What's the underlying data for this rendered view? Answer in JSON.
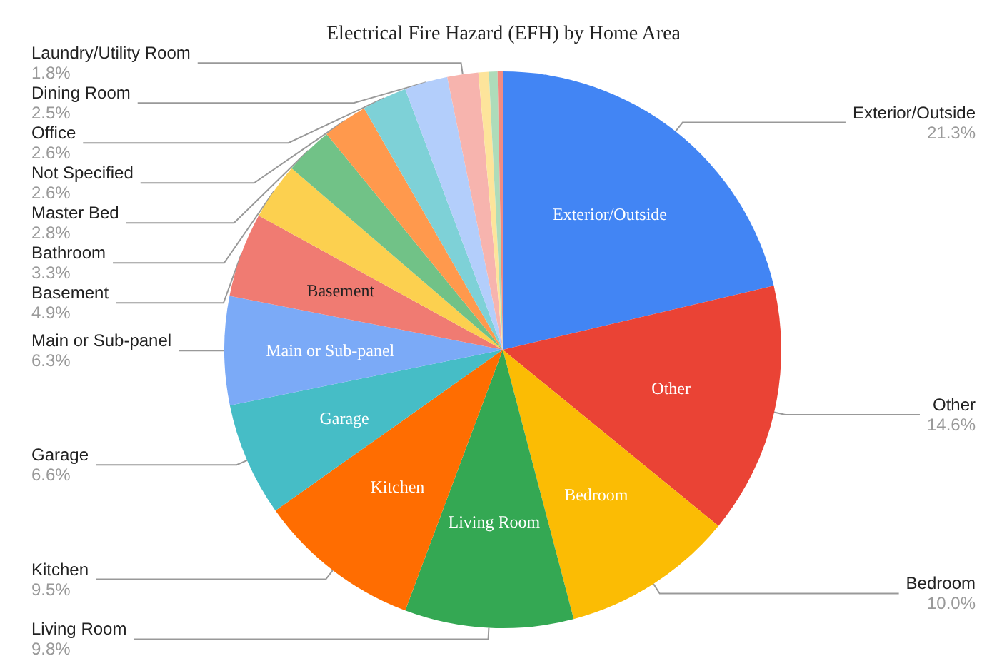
{
  "chart_data": {
    "type": "pie",
    "title": "Electrical Fire Hazard (EFH) by Home Area",
    "categories": [
      "Exterior/Outside",
      "Other",
      "Bedroom",
      "Living Room",
      "Kitchen",
      "Garage",
      "Main or Sub-panel",
      "Basement",
      "Bathroom",
      "Master Bed",
      "Not Specified",
      "Office",
      "Dining Room",
      "Laundry/Utility Room",
      null,
      null,
      null
    ],
    "values": [
      21.3,
      14.6,
      10.0,
      9.8,
      9.5,
      6.6,
      6.3,
      4.9,
      3.3,
      2.8,
      2.6,
      2.6,
      2.5,
      1.8,
      0.6,
      0.5,
      0.3
    ],
    "value_labels": [
      "21.3%",
      "14.6%",
      "10.0%",
      "9.8%",
      "9.5%",
      "6.6%",
      "6.3%",
      "4.9%",
      "3.3%",
      "2.8%",
      "2.6%",
      "2.6%",
      "2.5%",
      "1.8%",
      null,
      null,
      null
    ],
    "colors": [
      "#4285f4",
      "#ea4335",
      "#fbbc04",
      "#34a853",
      "#ff6d01",
      "#46bdc6",
      "#7baaf7",
      "#f07b72",
      "#fcd04f",
      "#71c287",
      "#ff994d",
      "#7ed1d7",
      "#b3cefb",
      "#f7b4ae",
      "#fde49b",
      "#aedcba",
      "#f28b82"
    ],
    "legend": false
  }
}
